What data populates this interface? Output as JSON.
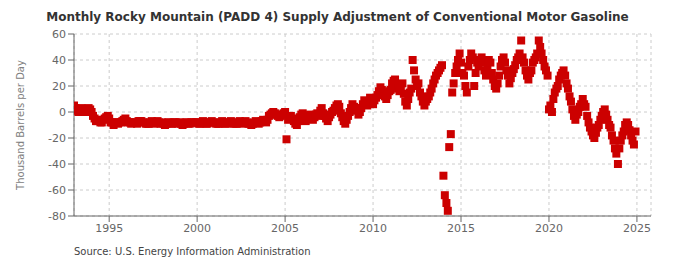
{
  "chart_data": {
    "type": "scatter",
    "title": "Monthly Rocky Mountain (PADD 4) Supply Adjustment of Conventional Motor Gasoline",
    "ylabel": "Thousand Barrels per Day",
    "annotation": "Source: U.S. Energy Information Administration",
    "xlim": [
      1993.0,
      2025.8
    ],
    "xticks": [
      1995,
      2000,
      2005,
      2010,
      2015,
      2020,
      2025
    ],
    "ylim": [
      -80,
      60
    ],
    "yticks": [
      -80,
      -60,
      -40,
      -20,
      0,
      20,
      40,
      60
    ],
    "grid": true,
    "color": "#cc0000",
    "marker": "square",
    "x": [
      1993.0,
      1993.08,
      1993.17,
      1993.25,
      1993.33,
      1993.42,
      1993.5,
      1993.58,
      1993.67,
      1993.75,
      1993.83,
      1993.92,
      1994.0,
      1994.08,
      1994.17,
      1994.25,
      1994.33,
      1994.42,
      1994.5,
      1994.58,
      1994.67,
      1994.75,
      1994.83,
      1994.92,
      1995.0,
      1995.08,
      1995.17,
      1995.25,
      1995.33,
      1995.42,
      1995.5,
      1995.58,
      1995.67,
      1995.75,
      1995.83,
      1995.92,
      1996.0,
      1996.08,
      1996.17,
      1996.25,
      1996.33,
      1996.42,
      1996.5,
      1996.58,
      1996.67,
      1996.75,
      1996.83,
      1996.92,
      1997.0,
      1997.08,
      1997.17,
      1997.25,
      1997.33,
      1997.42,
      1997.5,
      1997.58,
      1997.67,
      1997.75,
      1997.83,
      1997.92,
      1998.0,
      1998.08,
      1998.17,
      1998.25,
      1998.33,
      1998.42,
      1998.5,
      1998.58,
      1998.67,
      1998.75,
      1998.83,
      1998.92,
      1999.0,
      1999.08,
      1999.17,
      1999.25,
      1999.33,
      1999.42,
      1999.5,
      1999.58,
      1999.67,
      1999.75,
      1999.83,
      1999.92,
      2000.0,
      2000.08,
      2000.17,
      2000.25,
      2000.33,
      2000.42,
      2000.5,
      2000.58,
      2000.67,
      2000.75,
      2000.83,
      2000.92,
      2001.0,
      2001.08,
      2001.17,
      2001.25,
      2001.33,
      2001.42,
      2001.5,
      2001.58,
      2001.67,
      2001.75,
      2001.83,
      2001.92,
      2002.0,
      2002.08,
      2002.17,
      2002.25,
      2002.33,
      2002.42,
      2002.5,
      2002.58,
      2002.67,
      2002.75,
      2002.83,
      2002.92,
      2003.0,
      2003.08,
      2003.17,
      2003.25,
      2003.33,
      2003.42,
      2003.5,
      2003.58,
      2003.67,
      2003.75,
      2003.83,
      2003.92,
      2004.0,
      2004.08,
      2004.17,
      2004.25,
      2004.33,
      2004.42,
      2004.5,
      2004.58,
      2004.67,
      2004.75,
      2004.83,
      2004.92,
      2005.0,
      2005.08,
      2005.17,
      2005.25,
      2005.33,
      2005.42,
      2005.5,
      2005.58,
      2005.67,
      2005.75,
      2005.83,
      2005.92,
      2006.0,
      2006.08,
      2006.17,
      2006.25,
      2006.33,
      2006.42,
      2006.5,
      2006.58,
      2006.67,
      2006.75,
      2006.83,
      2006.92,
      2007.0,
      2007.08,
      2007.17,
      2007.25,
      2007.33,
      2007.42,
      2007.5,
      2007.58,
      2007.67,
      2007.75,
      2007.83,
      2007.92,
      2008.0,
      2008.08,
      2008.17,
      2008.25,
      2008.33,
      2008.42,
      2008.5,
      2008.58,
      2008.67,
      2008.75,
      2008.83,
      2008.92,
      2009.0,
      2009.08,
      2009.17,
      2009.25,
      2009.33,
      2009.42,
      2009.5,
      2009.58,
      2009.67,
      2009.75,
      2009.83,
      2009.92,
      2010.0,
      2010.08,
      2010.17,
      2010.25,
      2010.33,
      2010.42,
      2010.5,
      2010.58,
      2010.67,
      2010.75,
      2010.83,
      2010.92,
      2011.0,
      2011.08,
      2011.17,
      2011.25,
      2011.33,
      2011.42,
      2011.5,
      2011.58,
      2011.67,
      2011.75,
      2011.83,
      2011.92,
      2012.0,
      2012.08,
      2012.17,
      2012.25,
      2012.33,
      2012.42,
      2012.5,
      2012.58,
      2012.67,
      2012.75,
      2012.83,
      2012.92,
      2013.0,
      2013.08,
      2013.17,
      2013.25,
      2013.33,
      2013.42,
      2013.5,
      2013.58,
      2013.67,
      2013.75,
      2013.83,
      2013.92,
      2014.0,
      2014.08,
      2014.17,
      2014.25,
      2014.33,
      2014.42,
      2014.5,
      2014.58,
      2014.67,
      2014.75,
      2014.83,
      2014.92,
      2015.0,
      2015.08,
      2015.17,
      2015.25,
      2015.33,
      2015.42,
      2015.5,
      2015.58,
      2015.67,
      2015.75,
      2015.83,
      2015.92,
      2016.0,
      2016.08,
      2016.17,
      2016.25,
      2016.33,
      2016.42,
      2016.5,
      2016.58,
      2016.67,
      2016.75,
      2016.83,
      2016.92,
      2017.0,
      2017.08,
      2017.17,
      2017.25,
      2017.33,
      2017.42,
      2017.5,
      2017.58,
      2017.67,
      2017.75,
      2017.83,
      2017.92,
      2018.0,
      2018.08,
      2018.17,
      2018.25,
      2018.33,
      2018.42,
      2018.5,
      2018.58,
      2018.67,
      2018.75,
      2018.83,
      2018.92,
      2019.0,
      2019.08,
      2019.17,
      2019.25,
      2019.33,
      2019.42,
      2019.5,
      2019.58,
      2019.67,
      2019.75,
      2019.83,
      2019.92,
      2020.0,
      2020.08,
      2020.17,
      2020.25,
      2020.33,
      2020.42,
      2020.5,
      2020.58,
      2020.67,
      2020.75,
      2020.83,
      2020.92,
      2021.0,
      2021.08,
      2021.17,
      2021.25,
      2021.33,
      2021.42,
      2021.5,
      2021.58,
      2021.67,
      2021.75,
      2021.83,
      2021.92,
      2022.0,
      2022.08,
      2022.17,
      2022.25,
      2022.33,
      2022.42,
      2022.5,
      2022.58,
      2022.67,
      2022.75,
      2022.83,
      2022.92,
      2023.0,
      2023.08,
      2023.17,
      2023.25,
      2023.33,
      2023.42,
      2023.5,
      2023.58,
      2023.67,
      2023.75,
      2023.83,
      2023.92,
      2024.0,
      2024.08,
      2024.17,
      2024.25,
      2024.33,
      2024.42,
      2024.5,
      2024.58,
      2024.67,
      2024.75,
      2024.83,
      2024.92
    ],
    "values": [
      5,
      3,
      1,
      0,
      2,
      3,
      1,
      0,
      2,
      1,
      3,
      2,
      0,
      -3,
      -5,
      -7,
      -7,
      -6,
      -8,
      -8,
      -6,
      -5,
      -4,
      -3,
      -5,
      -8,
      -8,
      -10,
      -8,
      -8,
      -9,
      -8,
      -8,
      -7,
      -6,
      -5,
      -7,
      -8,
      -8,
      -9,
      -8,
      -8,
      -8,
      -9,
      -7,
      -7,
      -7,
      -8,
      -8,
      -9,
      -9,
      -9,
      -8,
      -7,
      -8,
      -9,
      -8,
      -7,
      -8,
      -9,
      -8,
      -9,
      -10,
      -9,
      -8,
      -8,
      -9,
      -9,
      -8,
      -8,
      -8,
      -9,
      -8,
      -9,
      -10,
      -9,
      -8,
      -8,
      -9,
      -9,
      -8,
      -8,
      -8,
      -8,
      -8,
      -9,
      -9,
      -8,
      -7,
      -8,
      -9,
      -9,
      -8,
      -8,
      -7,
      -8,
      -8,
      -9,
      -9,
      -9,
      -8,
      -7,
      -8,
      -9,
      -9,
      -8,
      -8,
      -7,
      -8,
      -9,
      -9,
      -9,
      -8,
      -7,
      -8,
      -9,
      -8,
      -7,
      -8,
      -9,
      -9,
      -10,
      -9,
      -8,
      -7,
      -8,
      -9,
      -8,
      -7,
      -6,
      -7,
      -8,
      -6,
      -3,
      -2,
      -1,
      0,
      -1,
      -2,
      -3,
      -4,
      -3,
      -2,
      -1,
      0,
      -21,
      -6,
      -4,
      -3,
      -5,
      -7,
      -9,
      -10,
      -7,
      -4,
      -2,
      -1,
      -4,
      -7,
      -5,
      -3,
      -2,
      -4,
      -6,
      -4,
      -2,
      -1,
      -3,
      1,
      3,
      -1,
      -3,
      -5,
      -7,
      -4,
      -2,
      0,
      1,
      3,
      5,
      6,
      4,
      -1,
      -4,
      -7,
      -9,
      -6,
      -3,
      0,
      3,
      6,
      4,
      3,
      1,
      -2,
      0,
      3,
      6,
      9,
      7,
      5,
      8,
      11,
      9,
      6,
      9,
      11,
      13,
      16,
      19,
      17,
      15,
      12,
      10,
      13,
      16,
      17,
      22,
      24,
      25,
      20,
      18,
      16,
      18,
      22,
      14,
      8,
      5,
      10,
      15,
      18,
      40,
      32,
      25,
      20,
      22,
      15,
      12,
      8,
      5,
      8,
      10,
      12,
      15,
      18,
      22,
      25,
      28,
      30,
      32,
      34,
      36,
      -49,
      -64,
      -70,
      -76,
      -27,
      -17,
      15,
      22,
      30,
      35,
      40,
      45,
      38,
      30,
      28,
      20,
      15,
      35,
      40,
      45,
      42,
      20,
      30,
      38,
      35,
      40,
      42,
      38,
      32,
      28,
      35,
      40,
      38,
      30,
      25,
      20,
      18,
      22,
      28,
      35,
      40,
      42,
      38,
      32,
      28,
      22,
      26,
      30,
      33,
      36,
      40,
      42,
      45,
      55,
      42,
      38,
      32,
      28,
      25,
      30,
      32,
      38,
      40,
      42,
      45,
      55,
      50,
      45,
      40,
      35,
      32,
      28,
      2,
      5,
      0,
      10,
      15,
      18,
      20,
      25,
      28,
      30,
      32,
      28,
      22,
      18,
      12,
      8,
      2,
      -3,
      -6,
      -2,
      0,
      4,
      6,
      10,
      6,
      4,
      -3,
      -8,
      -12,
      -15,
      -18,
      -20,
      -16,
      -12,
      -10,
      -6,
      -3,
      0,
      2,
      -2,
      -6,
      -10,
      -12,
      -18,
      -22,
      -28,
      -32,
      -40,
      -28,
      -22,
      -18,
      -15,
      -10,
      -8,
      -10,
      -14,
      -18,
      -22,
      -25,
      -15
    ]
  }
}
